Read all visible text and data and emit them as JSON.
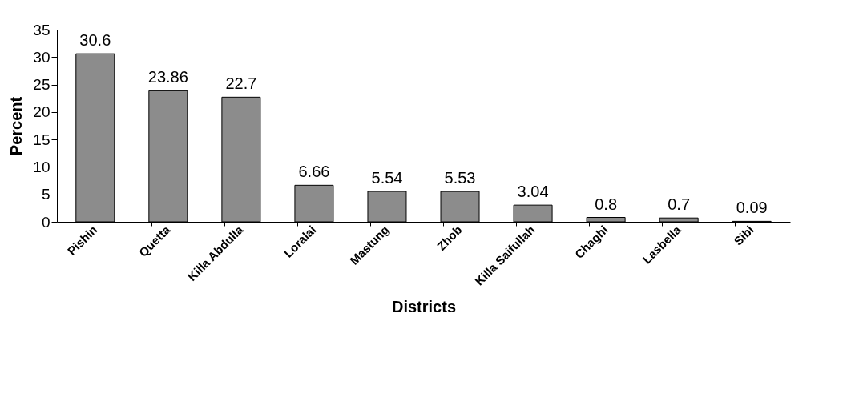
{
  "chart_data": {
    "type": "bar",
    "xlabel": "Districts",
    "ylabel": "Percent",
    "categories": [
      "Pishin",
      "Quetta",
      "Killa Abdulla",
      "Loralai",
      "Mastung",
      "Zhob",
      "Killa Saifullah",
      "Chaghi",
      "Lasbella",
      "Sibi"
    ],
    "values": [
      30.6,
      23.86,
      22.7,
      6.66,
      5.54,
      5.53,
      3.04,
      0.8,
      0.7,
      0.09
    ],
    "color": "#8c8c8c",
    "ylim": [
      0,
      35
    ],
    "yticks": [
      0,
      5,
      10,
      15,
      20,
      25,
      30,
      35
    ],
    "data_labels": true,
    "grid": false
  }
}
